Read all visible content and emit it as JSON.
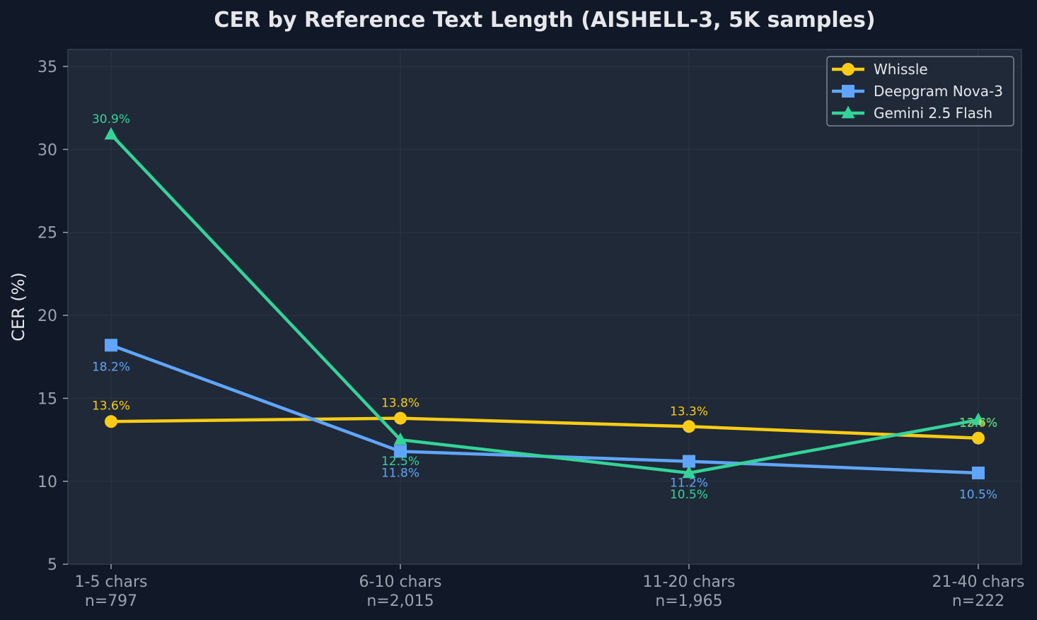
{
  "chart_data": {
    "type": "line",
    "title": "CER by Reference Text Length (AISHELL-3, 5K samples)",
    "xlabel": "",
    "ylabel": "CER (%)",
    "ylim": [
      5,
      36
    ],
    "yticks": [
      5,
      10,
      15,
      20,
      25,
      30,
      35
    ],
    "grid": true,
    "legend_position": "upper right",
    "categories": [
      "1-5 chars\nn=797",
      "6-10 chars\nn=2,015",
      "11-20 chars\nn=1,965",
      "21-40 chars\nn=222"
    ],
    "category_labels": [
      {
        "range": "1-5 chars",
        "n": "n=797"
      },
      {
        "range": "6-10 chars",
        "n": "n=2,015"
      },
      {
        "range": "11-20 chars",
        "n": "n=1,965"
      },
      {
        "range": "21-40 chars",
        "n": "n=222"
      }
    ],
    "series": [
      {
        "name": "Whissle",
        "color": "#facc15",
        "marker": "circle",
        "values": [
          13.6,
          13.8,
          13.3,
          12.6
        ],
        "labels": [
          "13.6%",
          "13.8%",
          "13.3%",
          "12.6%"
        ]
      },
      {
        "name": "Deepgram Nova-3",
        "color": "#60a5fa",
        "marker": "square",
        "values": [
          18.2,
          11.8,
          11.2,
          10.5
        ],
        "labels": [
          "18.2%",
          "11.8%",
          "11.2%",
          "10.5%"
        ]
      },
      {
        "name": "Gemini 2.5 Flash",
        "color": "#34d399",
        "marker": "triangle",
        "values": [
          30.9,
          12.5,
          10.5,
          13.7
        ],
        "labels": [
          "30.9%",
          "12.5%",
          "10.5%",
          "13.7%"
        ]
      }
    ]
  }
}
